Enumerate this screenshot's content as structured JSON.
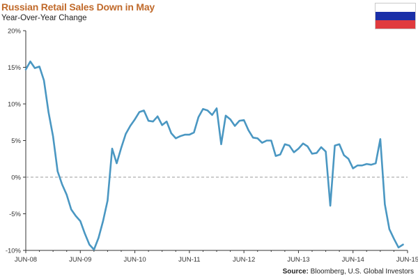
{
  "title": "Russian Retail Sales Down in May",
  "subtitle": "Year-Over-Year Change",
  "source": {
    "label": "Source:",
    "text": " Bloomberg, U.S. Global Investors"
  },
  "colors": {
    "title": "#c06a2b",
    "line": "#4a97c2",
    "zero_line": "#999999",
    "flag_white": "#ffffff",
    "flag_blue": "#1a2fa8",
    "flag_red": "#e03a3e"
  },
  "chart_data": {
    "type": "line",
    "title": "Russian Retail Sales Down in May",
    "subtitle": "Year-Over-Year Change",
    "ylim": [
      -10,
      20
    ],
    "ytick_labels": [
      "20%",
      "15%",
      "10%",
      "5%",
      "0%",
      "-5%",
      "-10%"
    ],
    "ytick_values": [
      20,
      15,
      10,
      5,
      0,
      -5,
      -10
    ],
    "xtick_labels": [
      "JUN-08",
      "JUN-09",
      "JUN-10",
      "JUN-11",
      "JUN-12",
      "JUN-13",
      "JUN-14",
      "JUN-15"
    ],
    "xlim_months": [
      0,
      84
    ],
    "grid": false,
    "reference_line": {
      "y": 0,
      "style": "dashed"
    },
    "series": [
      {
        "values": [
          [
            0,
            14.7
          ],
          [
            1,
            15.8
          ],
          [
            2,
            14.9
          ],
          [
            3,
            15.1
          ],
          [
            4,
            13.2
          ],
          [
            5,
            8.9
          ],
          [
            6,
            5.6
          ],
          [
            7,
            0.8
          ],
          [
            8,
            -1.0
          ],
          [
            9,
            -2.4
          ],
          [
            10,
            -4.4
          ],
          [
            11,
            -5.3
          ],
          [
            12,
            -6.0
          ],
          [
            13,
            -7.7
          ],
          [
            14,
            -9.2
          ],
          [
            15,
            -9.9
          ],
          [
            16,
            -8.3
          ],
          [
            17,
            -6.0
          ],
          [
            18,
            -3.2
          ],
          [
            19,
            3.9
          ],
          [
            20,
            1.9
          ],
          [
            21,
            4.0
          ],
          [
            22,
            5.9
          ],
          [
            23,
            7.0
          ],
          [
            24,
            7.9
          ],
          [
            25,
            8.9
          ],
          [
            26,
            9.1
          ],
          [
            27,
            7.7
          ],
          [
            28,
            7.6
          ],
          [
            29,
            8.3
          ],
          [
            30,
            7.1
          ],
          [
            31,
            7.6
          ],
          [
            32,
            6.0
          ],
          [
            33,
            5.3
          ],
          [
            34,
            5.6
          ],
          [
            35,
            5.8
          ],
          [
            36,
            5.8
          ],
          [
            37,
            6.1
          ],
          [
            38,
            8.2
          ],
          [
            39,
            9.3
          ],
          [
            40,
            9.1
          ],
          [
            41,
            8.5
          ],
          [
            42,
            9.4
          ],
          [
            43,
            4.5
          ],
          [
            44,
            8.4
          ],
          [
            45,
            7.9
          ],
          [
            46,
            7.0
          ],
          [
            47,
            7.7
          ],
          [
            48,
            7.8
          ],
          [
            49,
            6.4
          ],
          [
            50,
            5.4
          ],
          [
            51,
            5.3
          ],
          [
            52,
            4.7
          ],
          [
            53,
            5.0
          ],
          [
            54,
            5.0
          ],
          [
            55,
            2.9
          ],
          [
            56,
            3.1
          ],
          [
            57,
            4.5
          ],
          [
            58,
            4.3
          ],
          [
            59,
            3.4
          ],
          [
            60,
            3.9
          ],
          [
            61,
            4.6
          ],
          [
            62,
            4.2
          ],
          [
            63,
            3.2
          ],
          [
            64,
            3.3
          ],
          [
            65,
            4.1
          ],
          [
            66,
            3.5
          ],
          [
            67,
            -3.9
          ],
          [
            68,
            4.3
          ],
          [
            69,
            4.5
          ],
          [
            70,
            3.0
          ],
          [
            71,
            2.5
          ],
          [
            72,
            1.2
          ],
          [
            73,
            1.6
          ],
          [
            74,
            1.6
          ],
          [
            75,
            1.8
          ],
          [
            76,
            1.7
          ],
          [
            77,
            1.9
          ],
          [
            78,
            5.2
          ],
          [
            79,
            -3.7
          ],
          [
            80,
            -7.1
          ],
          [
            81,
            -8.4
          ],
          [
            82,
            -9.6
          ],
          [
            83,
            -9.2
          ]
        ]
      }
    ]
  }
}
